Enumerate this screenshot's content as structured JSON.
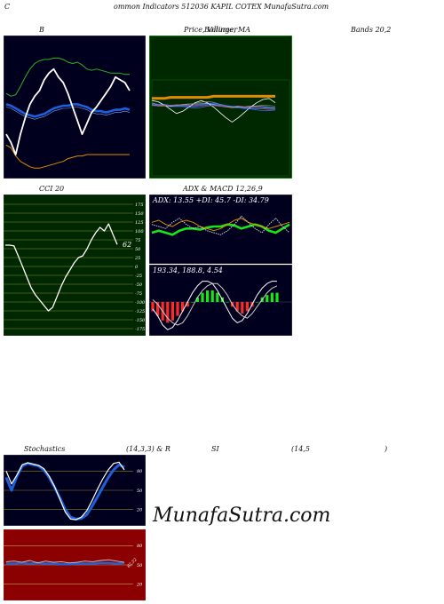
{
  "header": {
    "prefix": "C",
    "title": "ommon  Indicators 512036  KAPIL COTEX  MunafaSutra.com"
  },
  "labels": {
    "bollinger": "B",
    "price_mid": "Price,  Volume, MA",
    "price_overlap": "Bollinger",
    "bands": "Bands 20,2",
    "cci": "CCI 20",
    "adx_macd": "ADX  & MACD 12,26,9",
    "stoch_left": "Stochastics",
    "stoch_mid": "(14,3,3) & R",
    "stoch_si": "SI",
    "stoch_param": "(14,5",
    "stoch_close": ")"
  },
  "watermark": "MunafaSutra.com",
  "colors": {
    "navy": "#00001e",
    "green_bg": "#002800",
    "maroon": "#8b0000",
    "olive": "#8a8a2a",
    "white": "#ffffff",
    "blue": "#1e5fdc",
    "orange": "#e08c00",
    "green": "#28b428",
    "lime": "#19e619",
    "red": "#ff2a2a"
  },
  "chart_data": [
    {
      "type": "line",
      "panel": "bollinger",
      "series": [
        {
          "color": "#28b428",
          "values": [
            40,
            42,
            41,
            35,
            28,
            22,
            18,
            16,
            15,
            15,
            14,
            14,
            15,
            17,
            18,
            17,
            19,
            22,
            23,
            22,
            23,
            24,
            25,
            25,
            25,
            26,
            26
          ]
        },
        {
          "color": "#1e5fdc",
          "values": [
            48,
            49,
            51,
            53,
            55,
            56,
            57,
            56,
            55,
            53,
            51,
            50,
            49,
            49,
            48,
            48,
            49,
            50,
            52,
            53,
            53,
            54,
            53,
            52,
            52,
            51,
            52
          ]
        },
        {
          "color": "#e08c00",
          "values": [
            78,
            80,
            86,
            90,
            92,
            94,
            95,
            95,
            94,
            93,
            92,
            91,
            90,
            88,
            87,
            86,
            86,
            85,
            85,
            85,
            85,
            85,
            85,
            85,
            85,
            85,
            85
          ]
        },
        {
          "color": "#ffffff",
          "values": [
            70,
            76,
            85,
            70,
            58,
            48,
            42,
            38,
            30,
            25,
            22,
            28,
            32,
            40,
            50,
            60,
            70,
            62,
            54,
            50,
            45,
            40,
            35,
            28,
            30,
            32,
            38
          ]
        }
      ]
    },
    {
      "type": "line",
      "panel": "price_volume_ma",
      "series": [
        {
          "color": "#e08c00",
          "values": [
            42,
            42,
            42,
            41,
            41,
            41,
            41,
            41,
            41,
            41,
            40,
            40,
            40,
            40,
            40,
            40,
            40,
            40,
            40,
            40,
            40
          ]
        },
        {
          "color": "#1e5fdc",
          "values": [
            47,
            48,
            48,
            49,
            49,
            49,
            49,
            49,
            48,
            47,
            47,
            48,
            49,
            50,
            50,
            51,
            51,
            51,
            51,
            51,
            51
          ]
        },
        {
          "color": "#ffffff",
          "values": [
            44,
            45,
            48,
            52,
            56,
            54,
            50,
            46,
            44,
            46,
            50,
            55,
            60,
            64,
            60,
            55,
            50,
            46,
            43,
            42,
            46
          ]
        }
      ]
    },
    {
      "type": "line",
      "panel": "cci",
      "yticks": [
        175,
        150,
        125,
        100,
        75,
        50,
        25,
        0,
        -25,
        -50,
        -75,
        -100,
        -125,
        -150,
        -175
      ],
      "current_label": "62",
      "values": [
        60,
        60,
        58,
        30,
        0,
        -30,
        -60,
        -80,
        -95,
        -110,
        -125,
        -115,
        -85,
        -55,
        -30,
        -10,
        10,
        25,
        30,
        50,
        75,
        95,
        110,
        100,
        120,
        90,
        62
      ]
    },
    {
      "type": "line",
      "panel": "adx",
      "label": "ADX: 13.55  +DI: 45.7  -DI: 34.79",
      "series": [
        {
          "color": "#19e619",
          "values": [
            30,
            32,
            30,
            28,
            32,
            34,
            34,
            33,
            35,
            36,
            36,
            38,
            37,
            34,
            36,
            38,
            36,
            32,
            30,
            34,
            38
          ]
        },
        {
          "color": "#e08c00",
          "values": [
            40,
            42,
            38,
            36,
            40,
            42,
            40,
            36,
            34,
            32,
            34,
            38,
            42,
            44,
            40,
            38,
            36,
            34,
            36,
            38,
            40
          ]
        },
        {
          "color": "#cccccc",
          "values": [
            38,
            36,
            34,
            40,
            44,
            38,
            34,
            36,
            32,
            30,
            28,
            32,
            38,
            46,
            40,
            34,
            30,
            38,
            44,
            36,
            30
          ]
        }
      ]
    },
    {
      "type": "bar",
      "panel": "macd",
      "label": "193.34,  188.8,  4.54",
      "hist": [
        -4,
        -6,
        -8,
        -9,
        -8,
        -6,
        -4,
        -2,
        0,
        2,
        4,
        5,
        5,
        4,
        2,
        0,
        -2,
        -4,
        -5,
        -4,
        -2,
        0,
        2,
        3,
        4,
        4
      ],
      "series": [
        {
          "color": "#ffffff",
          "values": [
            -3,
            -6,
            -10,
            -12,
            -11,
            -8,
            -4,
            0,
            4,
            7,
            9,
            9,
            8,
            5,
            1,
            -3,
            -7,
            -9,
            -8,
            -5,
            -1,
            3,
            6,
            8,
            9,
            9
          ]
        },
        {
          "color": "#cccccc",
          "values": [
            1,
            -1,
            -4,
            -7,
            -9,
            -10,
            -9,
            -6,
            -2,
            2,
            5,
            7,
            8,
            8,
            6,
            3,
            -1,
            -4,
            -6,
            -7,
            -5,
            -2,
            1,
            4,
            6,
            7
          ]
        }
      ]
    },
    {
      "type": "line",
      "panel": "stochastics",
      "yticks": [
        80,
        50,
        20
      ],
      "series": [
        {
          "color": "#1e5fdc",
          "values": [
            70,
            50,
            72,
            88,
            92,
            90,
            88,
            82,
            70,
            55,
            38,
            20,
            8,
            5,
            6,
            12,
            25,
            40,
            55,
            70,
            82,
            90,
            86
          ]
        },
        {
          "color": "#ffffff",
          "values": [
            80,
            60,
            74,
            90,
            93,
            91,
            89,
            84,
            72,
            56,
            36,
            16,
            5,
            4,
            8,
            18,
            34,
            52,
            68,
            82,
            92,
            94,
            82
          ]
        }
      ]
    },
    {
      "type": "line",
      "panel": "rsi",
      "yticks": [
        80,
        50,
        20
      ],
      "current_label": "62.52",
      "series": [
        {
          "color": "#1e5fdc",
          "values": [
            52,
            52,
            53,
            52,
            53,
            52,
            52,
            51,
            51,
            52,
            52,
            52,
            53,
            53,
            52,
            53
          ]
        },
        {
          "color": "#cccccc",
          "values": [
            55,
            56,
            54,
            57,
            53,
            56,
            54,
            55,
            53,
            54,
            56,
            55,
            57,
            58,
            56,
            54
          ]
        }
      ]
    }
  ]
}
